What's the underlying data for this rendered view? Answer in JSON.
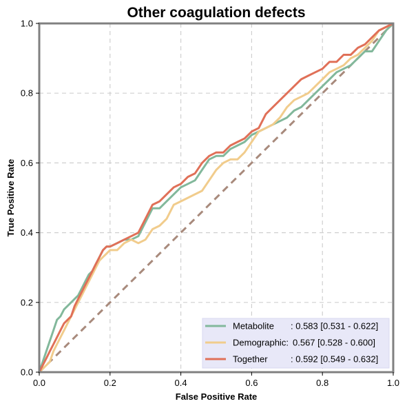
{
  "chart_data": {
    "type": "line",
    "title": "Other coagulation defects",
    "xlabel": "False Positive Rate",
    "ylabel": "True Positive Rate",
    "xlim": [
      0,
      1
    ],
    "ylim": [
      0,
      1
    ],
    "xticks": [
      "0.0",
      "0.2",
      "0.4",
      "0.6",
      "0.8",
      "1.0"
    ],
    "yticks": [
      "0.0",
      "0.2",
      "0.4",
      "0.6",
      "0.8",
      "1.0"
    ],
    "grid": true,
    "legend_position": "bottom-right",
    "diagonal": {
      "x": [
        0,
        1
      ],
      "y": [
        0,
        1
      ],
      "color": "#a88a7c",
      "style": "dashed"
    },
    "series": [
      {
        "name": "Metabolite",
        "label_name": "Metabolite",
        "label_stats": ": 0.583 [0.531 - 0.622]",
        "color": "#82b89b",
        "x": [
          0,
          0.01,
          0.02,
          0.03,
          0.04,
          0.05,
          0.06,
          0.07,
          0.08,
          0.09,
          0.1,
          0.11,
          0.12,
          0.13,
          0.14,
          0.15,
          0.16,
          0.17,
          0.18,
          0.19,
          0.2,
          0.22,
          0.24,
          0.26,
          0.28,
          0.3,
          0.32,
          0.34,
          0.36,
          0.38,
          0.4,
          0.42,
          0.44,
          0.46,
          0.48,
          0.5,
          0.52,
          0.54,
          0.56,
          0.58,
          0.6,
          0.62,
          0.64,
          0.66,
          0.68,
          0.7,
          0.72,
          0.74,
          0.76,
          0.78,
          0.8,
          0.82,
          0.84,
          0.86,
          0.88,
          0.9,
          0.92,
          0.94,
          0.96,
          0.98,
          1.0
        ],
        "y": [
          0,
          0.03,
          0.06,
          0.09,
          0.12,
          0.15,
          0.16,
          0.18,
          0.19,
          0.2,
          0.21,
          0.22,
          0.24,
          0.26,
          0.28,
          0.29,
          0.31,
          0.33,
          0.35,
          0.36,
          0.36,
          0.37,
          0.38,
          0.38,
          0.39,
          0.43,
          0.47,
          0.47,
          0.49,
          0.51,
          0.53,
          0.54,
          0.55,
          0.58,
          0.61,
          0.62,
          0.62,
          0.64,
          0.65,
          0.66,
          0.68,
          0.69,
          0.7,
          0.71,
          0.72,
          0.73,
          0.75,
          0.76,
          0.78,
          0.8,
          0.82,
          0.84,
          0.86,
          0.87,
          0.88,
          0.9,
          0.92,
          0.92,
          0.95,
          0.98,
          1.0
        ]
      },
      {
        "name": "Demographic",
        "label_name": "Demographic:",
        "label_stats": "0.567 [0.528 - 0.600]",
        "color": "#f1cc8c",
        "x": [
          0,
          0.01,
          0.02,
          0.03,
          0.04,
          0.05,
          0.06,
          0.07,
          0.08,
          0.09,
          0.1,
          0.11,
          0.12,
          0.13,
          0.14,
          0.15,
          0.16,
          0.17,
          0.18,
          0.19,
          0.2,
          0.22,
          0.24,
          0.26,
          0.28,
          0.3,
          0.32,
          0.34,
          0.36,
          0.38,
          0.4,
          0.42,
          0.44,
          0.46,
          0.48,
          0.5,
          0.52,
          0.54,
          0.56,
          0.58,
          0.6,
          0.62,
          0.64,
          0.66,
          0.68,
          0.7,
          0.72,
          0.74,
          0.76,
          0.78,
          0.8,
          0.82,
          0.84,
          0.86,
          0.88,
          0.9,
          0.92,
          0.94,
          0.96,
          0.98,
          1.0
        ],
        "y": [
          0,
          0.01,
          0.02,
          0.03,
          0.06,
          0.08,
          0.1,
          0.12,
          0.14,
          0.16,
          0.18,
          0.2,
          0.22,
          0.24,
          0.26,
          0.28,
          0.3,
          0.32,
          0.33,
          0.34,
          0.35,
          0.35,
          0.37,
          0.38,
          0.37,
          0.38,
          0.41,
          0.42,
          0.44,
          0.48,
          0.49,
          0.5,
          0.51,
          0.52,
          0.55,
          0.58,
          0.6,
          0.61,
          0.61,
          0.63,
          0.66,
          0.69,
          0.7,
          0.71,
          0.73,
          0.76,
          0.78,
          0.79,
          0.8,
          0.82,
          0.84,
          0.86,
          0.87,
          0.88,
          0.9,
          0.91,
          0.93,
          0.95,
          0.98,
          0.99,
          1.0
        ]
      },
      {
        "name": "Together",
        "label_name": "Together",
        "label_stats": ": 0.592 [0.549 - 0.632]",
        "color": "#e07058",
        "x": [
          0,
          0.01,
          0.02,
          0.03,
          0.04,
          0.05,
          0.06,
          0.07,
          0.08,
          0.09,
          0.1,
          0.11,
          0.12,
          0.13,
          0.14,
          0.15,
          0.16,
          0.17,
          0.18,
          0.19,
          0.2,
          0.22,
          0.24,
          0.26,
          0.28,
          0.3,
          0.32,
          0.34,
          0.36,
          0.38,
          0.4,
          0.42,
          0.44,
          0.46,
          0.48,
          0.5,
          0.52,
          0.54,
          0.56,
          0.58,
          0.6,
          0.62,
          0.64,
          0.66,
          0.68,
          0.7,
          0.72,
          0.74,
          0.76,
          0.78,
          0.8,
          0.82,
          0.84,
          0.86,
          0.88,
          0.9,
          0.92,
          0.94,
          0.96,
          0.98,
          1.0
        ],
        "y": [
          0,
          0.02,
          0.04,
          0.06,
          0.08,
          0.1,
          0.12,
          0.14,
          0.15,
          0.16,
          0.19,
          0.21,
          0.23,
          0.25,
          0.27,
          0.29,
          0.31,
          0.33,
          0.35,
          0.36,
          0.36,
          0.37,
          0.38,
          0.39,
          0.4,
          0.44,
          0.48,
          0.49,
          0.51,
          0.53,
          0.54,
          0.56,
          0.57,
          0.6,
          0.62,
          0.63,
          0.63,
          0.65,
          0.66,
          0.67,
          0.69,
          0.7,
          0.74,
          0.76,
          0.78,
          0.8,
          0.82,
          0.84,
          0.85,
          0.86,
          0.87,
          0.89,
          0.89,
          0.91,
          0.91,
          0.93,
          0.94,
          0.96,
          0.98,
          0.99,
          1.0
        ]
      }
    ]
  }
}
